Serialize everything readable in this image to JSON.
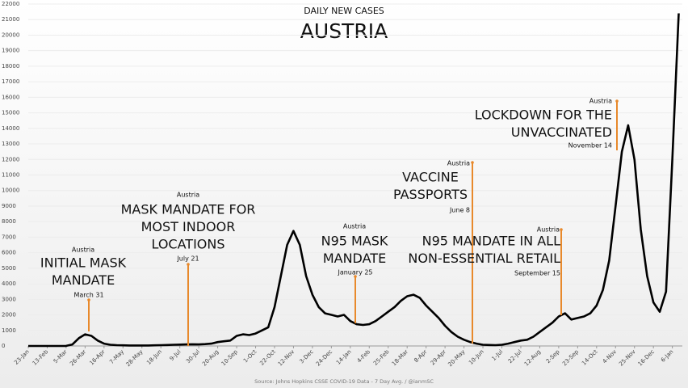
{
  "chart_data": {
    "type": "line",
    "title": "DAILY NEW CASES",
    "subtitle": "AUSTRIA",
    "source": "Source: Johns Hopkins CSSE COVID-19 Data - 7 Day Avg. / @ianmSC",
    "categories": [
      "23-Jan",
      null,
      null,
      "13-Feb",
      null,
      null,
      "5-Mar",
      null,
      null,
      "26-Mar",
      null,
      null,
      "16-Apr",
      null,
      null,
      "7-May",
      null,
      null,
      "28-May",
      null,
      null,
      "18-Jun",
      null,
      null,
      "9-Jul",
      null,
      null,
      "30-Jul",
      null,
      null,
      "20-Aug",
      null,
      null,
      "10-Sep",
      null,
      null,
      "1-Oct",
      null,
      null,
      "22-Oct",
      null,
      null,
      "12-Nov",
      null,
      null,
      "3-Dec",
      null,
      null,
      "24-Dec",
      null,
      null,
      "14-Jan",
      null,
      null,
      "4-Feb",
      null,
      null,
      "25-Feb",
      null,
      null,
      "18-Mar",
      null,
      null,
      "8-Apr",
      null,
      null,
      "29-Apr",
      null,
      null,
      "20-May",
      null,
      null,
      "10-Jun",
      null,
      null,
      "1-Jul",
      null,
      null,
      "22-Jul",
      null,
      null,
      "12-Aug",
      null,
      null,
      "2-Sep",
      null,
      null,
      "23-Sep",
      null,
      null,
      "14-Oct",
      null,
      null,
      "4-Nov",
      null,
      null,
      "25-Nov",
      null,
      null,
      "16-Dec",
      null,
      null,
      "6-Jan",
      null
    ],
    "series": [
      {
        "name": "Daily new cases",
        "color": "#000000",
        "values": [
          0,
          0,
          0,
          0,
          0,
          0,
          5,
          100,
          500,
          750,
          650,
          350,
          150,
          80,
          50,
          40,
          30,
          30,
          30,
          30,
          40,
          50,
          60,
          80,
          90,
          100,
          110,
          100,
          120,
          150,
          250,
          300,
          350,
          650,
          750,
          700,
          800,
          1000,
          1200,
          2500,
          4500,
          6500,
          7400,
          6500,
          4500,
          3300,
          2500,
          2100,
          2000,
          1900,
          2000,
          1600,
          1400,
          1350,
          1400,
          1600,
          1900,
          2200,
          2500,
          2900,
          3200,
          3300,
          3100,
          2600,
          2200,
          1800,
          1300,
          900,
          600,
          400,
          250,
          150,
          80,
          60,
          50,
          80,
          150,
          250,
          350,
          400,
          600,
          900,
          1200,
          1500,
          1900,
          2100,
          1700,
          1800,
          1900,
          2100,
          2600,
          3600,
          5500,
          9000,
          12500,
          14200,
          12000,
          7500,
          4500,
          2800,
          2200,
          3500,
          12000,
          21400
        ]
      }
    ],
    "ylim": [
      0,
      22000
    ],
    "yticks": [
      0,
      1000,
      2000,
      3000,
      4000,
      5000,
      6000,
      7000,
      8000,
      9000,
      10000,
      11000,
      12000,
      13000,
      14000,
      15000,
      16000,
      17000,
      18000,
      19000,
      20000,
      21000,
      22000
    ],
    "grid": true,
    "annotations": [
      {
        "source": "Austria",
        "lines": [
          "INITIAL MASK",
          "MANDATE"
        ],
        "date": "March 31",
        "color": "#e8892b"
      },
      {
        "source": "Austria",
        "lines": [
          "MASK MANDATE FOR",
          "MOST INDOOR",
          "LOCATIONS"
        ],
        "date": "July 21",
        "color": "#e8892b"
      },
      {
        "source": "Austria",
        "lines": [
          "N95 MASK",
          "MANDATE"
        ],
        "date": "January 25",
        "color": "#e8892b"
      },
      {
        "source": "Austria",
        "lines": [
          "VACCINE",
          "PASSPORTS"
        ],
        "date": "June 8",
        "color": "#e8892b"
      },
      {
        "source": "Austria",
        "lines": [
          "N95 MANDATE IN ALL",
          "NON-ESSENTIAL RETAIL"
        ],
        "date": "September 15",
        "color": "#e8892b"
      },
      {
        "source": "Austria",
        "lines": [
          "LOCKDOWN FOR THE",
          "UNVACCINATED"
        ],
        "date": "November 14",
        "color": "#e8892b"
      }
    ]
  }
}
